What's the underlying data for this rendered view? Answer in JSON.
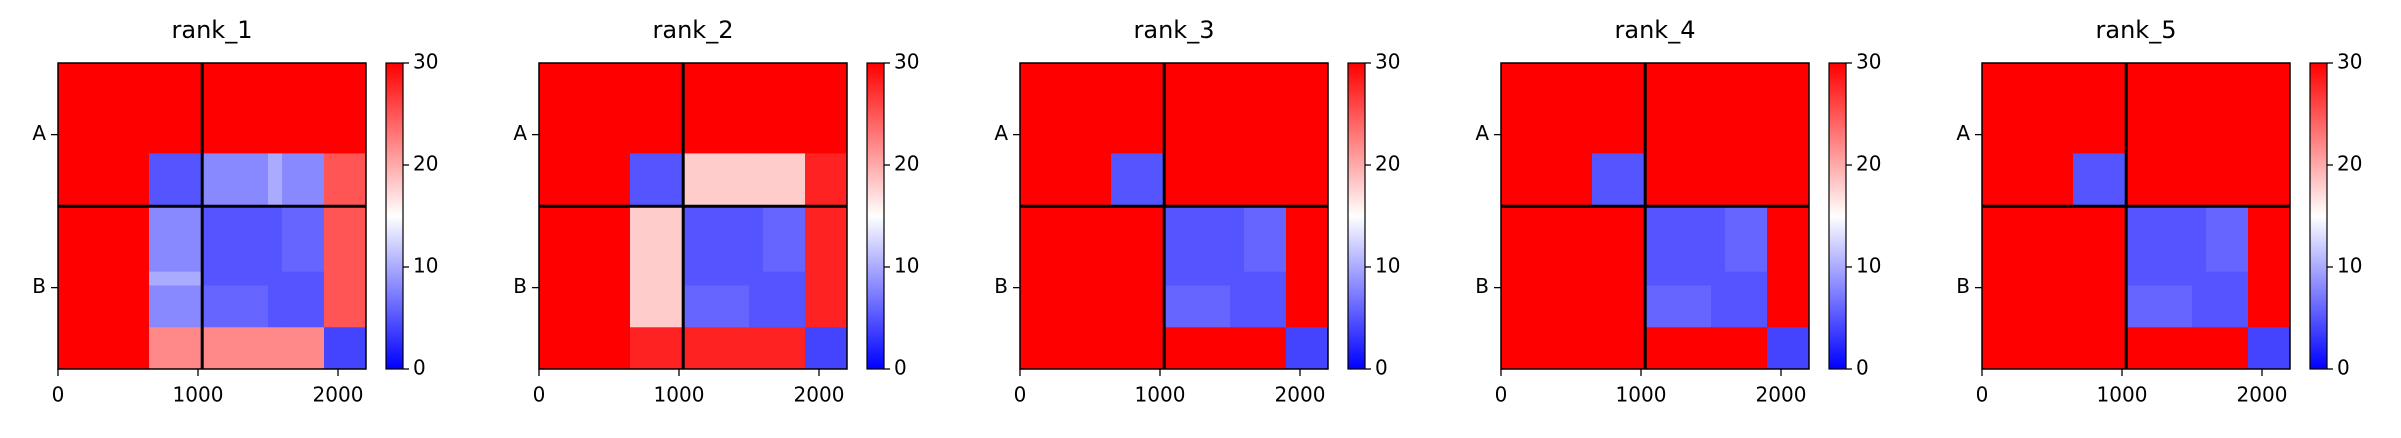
{
  "chart_data": [
    {
      "type": "heatmap",
      "title": "rank_1",
      "bins": [
        0,
        650,
        1030,
        1500,
        1600,
        1900,
        2200
      ],
      "z": [
        [
          30,
          30,
          30,
          30,
          30,
          30
        ],
        [
          30,
          5,
          8,
          10,
          8,
          25
        ],
        [
          30,
          8,
          5,
          5,
          6,
          25
        ],
        [
          30,
          10,
          5,
          5,
          5,
          25
        ],
        [
          30,
          8,
          6,
          5,
          5,
          25
        ],
        [
          30,
          22,
          22,
          22,
          22,
          4
        ]
      ],
      "xlim": [
        0,
        2200
      ],
      "ylim": [
        2200,
        0
      ],
      "xticks": [
        0,
        1000,
        2000
      ],
      "yticks": [
        {
          "value": 515,
          "label": "A"
        },
        {
          "value": 1615,
          "label": "B"
        }
      ],
      "clim": [
        0,
        30
      ],
      "cticks": [
        0,
        10,
        20,
        30
      ],
      "colormap": [
        "#0000ff",
        "#ffffff",
        "#ff0000"
      ],
      "chain_breaks": [
        1030
      ]
    },
    {
      "type": "heatmap",
      "title": "rank_2",
      "bins": [
        0,
        650,
        1030,
        1500,
        1600,
        1900,
        2200
      ],
      "z": [
        [
          30,
          30,
          30,
          30,
          30,
          30
        ],
        [
          30,
          5,
          18,
          18,
          18,
          28
        ],
        [
          30,
          18,
          5,
          5,
          6,
          28
        ],
        [
          30,
          18,
          5,
          5,
          5,
          28
        ],
        [
          30,
          18,
          6,
          5,
          5,
          28
        ],
        [
          30,
          28,
          28,
          28,
          28,
          4
        ]
      ],
      "xlim": [
        0,
        2200
      ],
      "ylim": [
        2200,
        0
      ],
      "xticks": [
        0,
        1000,
        2000
      ],
      "yticks": [
        {
          "value": 515,
          "label": "A"
        },
        {
          "value": 1615,
          "label": "B"
        }
      ],
      "clim": [
        0,
        30
      ],
      "cticks": [
        0,
        10,
        20,
        30
      ],
      "colormap": [
        "#0000ff",
        "#ffffff",
        "#ff0000"
      ],
      "chain_breaks": [
        1030
      ]
    },
    {
      "type": "heatmap",
      "title": "rank_3",
      "bins": [
        0,
        650,
        1030,
        1500,
        1600,
        1900,
        2200
      ],
      "z": [
        [
          30,
          30,
          30,
          30,
          30,
          30
        ],
        [
          30,
          5,
          30,
          30,
          30,
          30
        ],
        [
          30,
          30,
          5,
          5,
          6,
          30
        ],
        [
          30,
          30,
          5,
          5,
          5,
          30
        ],
        [
          30,
          30,
          6,
          5,
          5,
          30
        ],
        [
          30,
          30,
          30,
          30,
          30,
          4
        ]
      ],
      "xlim": [
        0,
        2200
      ],
      "ylim": [
        2200,
        0
      ],
      "xticks": [
        0,
        1000,
        2000
      ],
      "yticks": [
        {
          "value": 515,
          "label": "A"
        },
        {
          "value": 1615,
          "label": "B"
        }
      ],
      "clim": [
        0,
        30
      ],
      "cticks": [
        0,
        10,
        20,
        30
      ],
      "colormap": [
        "#0000ff",
        "#ffffff",
        "#ff0000"
      ],
      "chain_breaks": [
        1030
      ]
    },
    {
      "type": "heatmap",
      "title": "rank_4",
      "bins": [
        0,
        650,
        1030,
        1500,
        1600,
        1900,
        2200
      ],
      "z": [
        [
          30,
          30,
          30,
          30,
          30,
          30
        ],
        [
          30,
          5,
          30,
          30,
          30,
          30
        ],
        [
          30,
          30,
          5,
          5,
          6,
          30
        ],
        [
          30,
          30,
          5,
          5,
          5,
          30
        ],
        [
          30,
          30,
          6,
          5,
          5,
          30
        ],
        [
          30,
          30,
          30,
          30,
          30,
          4
        ]
      ],
      "xlim": [
        0,
        2200
      ],
      "ylim": [
        2200,
        0
      ],
      "xticks": [
        0,
        1000,
        2000
      ],
      "yticks": [
        {
          "value": 515,
          "label": "A"
        },
        {
          "value": 1615,
          "label": "B"
        }
      ],
      "clim": [
        0,
        30
      ],
      "cticks": [
        0,
        10,
        20,
        30
      ],
      "colormap": [
        "#0000ff",
        "#ffffff",
        "#ff0000"
      ],
      "chain_breaks": [
        1030
      ]
    },
    {
      "type": "heatmap",
      "title": "rank_5",
      "bins": [
        0,
        650,
        1030,
        1500,
        1600,
        1900,
        2200
      ],
      "z": [
        [
          30,
          30,
          30,
          30,
          30,
          30
        ],
        [
          30,
          5,
          30,
          30,
          30,
          30
        ],
        [
          30,
          30,
          5,
          5,
          6,
          30
        ],
        [
          30,
          30,
          5,
          5,
          5,
          30
        ],
        [
          30,
          30,
          6,
          5,
          5,
          30
        ],
        [
          30,
          30,
          30,
          30,
          30,
          4
        ]
      ],
      "xlim": [
        0,
        2200
      ],
      "ylim": [
        2200,
        0
      ],
      "xticks": [
        0,
        1000,
        2000
      ],
      "yticks": [
        {
          "value": 515,
          "label": "A"
        },
        {
          "value": 1615,
          "label": "B"
        }
      ],
      "clim": [
        0,
        30
      ],
      "cticks": [
        0,
        10,
        20,
        30
      ],
      "colormap": [
        "#0000ff",
        "#ffffff",
        "#ff0000"
      ],
      "chain_breaks": [
        1030
      ]
    }
  ]
}
